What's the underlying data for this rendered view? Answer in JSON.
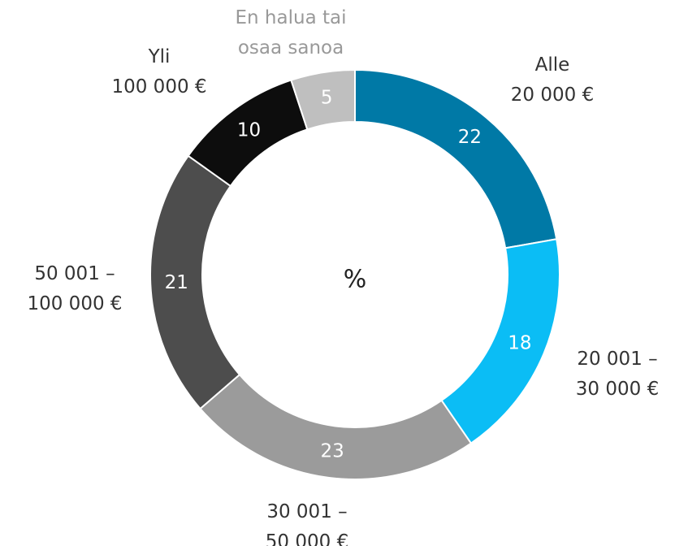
{
  "chart_data": {
    "type": "donut",
    "categories": [
      [
        "Alle",
        "20 000 €"
      ],
      [
        "20 001 –",
        "30 000 €"
      ],
      [
        "30 001 –",
        "50 000 €"
      ],
      [
        "50 001 –",
        "100 000 €"
      ],
      [
        "Yli",
        "100 000 €"
      ],
      [
        "En halua tai",
        "osaa sanoa"
      ]
    ],
    "values": [
      22,
      18,
      23,
      21,
      10,
      5
    ],
    "colors": [
      "#0079a6",
      "#0bbdf5",
      "#9b9b9b",
      "#4d4d4d",
      "#0d0d0d",
      "#bfbfbf"
    ],
    "label_colors": [
      "#333333",
      "#333333",
      "#333333",
      "#333333",
      "#333333",
      "#999999"
    ],
    "center_label": "%"
  }
}
